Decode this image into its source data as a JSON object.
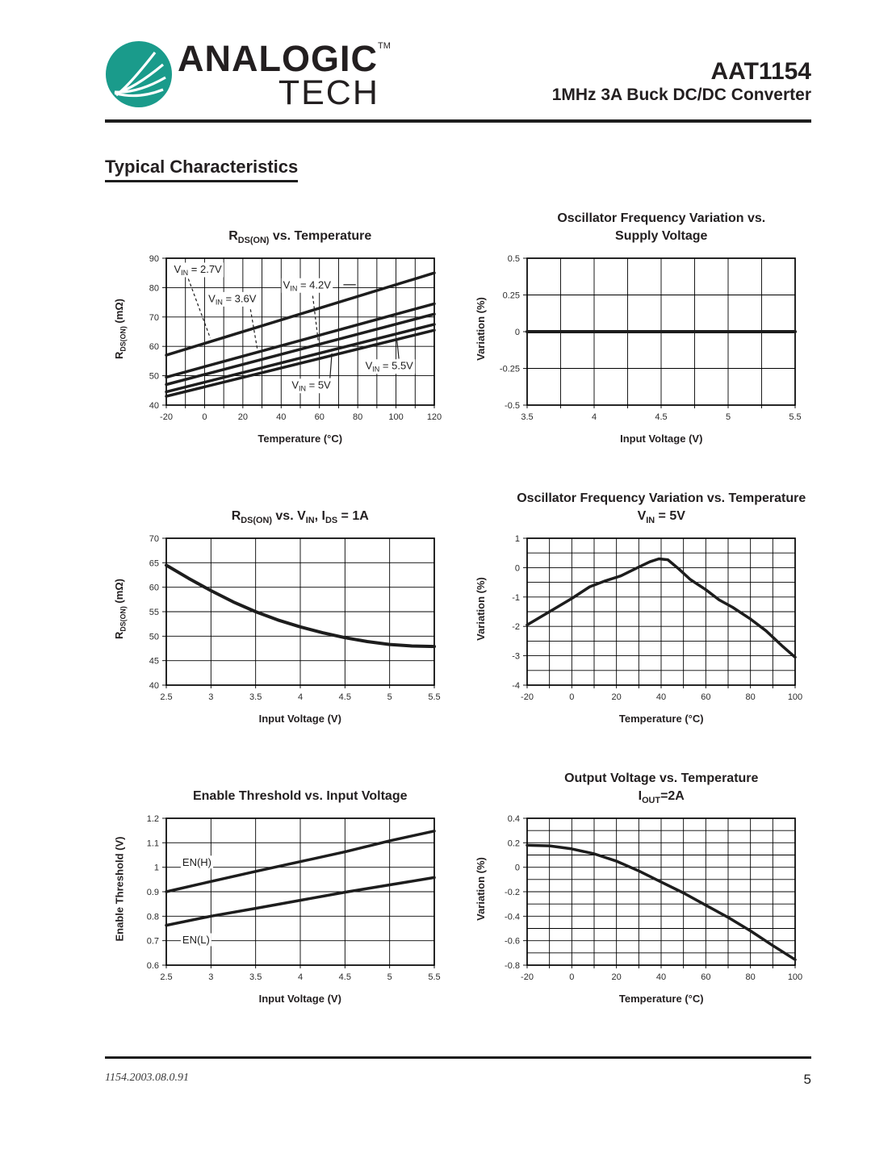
{
  "page": {
    "brand": {
      "line1": "ANALOGIC",
      "tm": "TM",
      "line2": "TECH"
    },
    "part_number": "AAT1154",
    "subtitle": "1MHz 3A Buck DC/DC Converter",
    "section_heading": "Typical Characteristics",
    "footer": {
      "doc_id": "1154.2003.08.0.91",
      "page_number": "5"
    },
    "colors": {
      "brand_teal": "#1A9B8B",
      "ink": "#231F20",
      "chart_stroke": "#1d1d1d"
    },
    "icons": [
      "analogictech-leaf-logo"
    ]
  },
  "chart_data": [
    {
      "id": "rdson-vs-temperature",
      "type": "line",
      "title": [
        [
          {
            "t": "R"
          },
          {
            "s": "DS(ON)"
          },
          {
            "t": " vs. Temperature"
          }
        ]
      ],
      "xlabel": [
        {
          "t": "Temperature (°C)"
        }
      ],
      "ylabel": [
        {
          "t": "R"
        },
        {
          "s": "DS(ON)"
        },
        {
          "t": " (mΩ)"
        }
      ],
      "x": {
        "min": -20,
        "max": 120,
        "grid": 10,
        "ticks": [
          -20,
          0,
          20,
          40,
          60,
          80,
          100,
          120
        ]
      },
      "y": {
        "min": 40,
        "max": 90,
        "grid": 10,
        "ticks": [
          40,
          50,
          60,
          70,
          80,
          90
        ]
      },
      "grid_on": true,
      "series": [
        {
          "name": "VIN = 2.7V",
          "w": 3.5,
          "points": [
            [
              -20,
              57
            ],
            [
              120,
              85
            ]
          ]
        },
        {
          "name": "VIN = 3.6V",
          "w": 3.5,
          "points": [
            [
              -20,
              49.5
            ],
            [
              120,
              74.5
            ]
          ]
        },
        {
          "name": "VIN = 4.2V",
          "w": 3.5,
          "points": [
            [
              -20,
              47
            ],
            [
              120,
              71
            ]
          ]
        },
        {
          "name": "VIN = 5V",
          "w": 3.5,
          "points": [
            [
              -20,
              44.5
            ],
            [
              120,
              67.5
            ]
          ]
        },
        {
          "name": "VIN = 5.5V",
          "w": 3.5,
          "points": [
            [
              -20,
              43
            ],
            [
              120,
              65.5
            ]
          ]
        }
      ],
      "annotations": [
        {
          "x": -16,
          "y": 86.3,
          "parts": [
            {
              "t": "V"
            },
            {
              "s": "IN"
            },
            {
              "t": " = 2.7V"
            }
          ],
          "leaders": [
            {
              "dash": true,
              "pts": [
                [
                  -8.5,
                  83.0
                ],
                [
                  3,
                  62.8
                ]
              ]
            }
          ]
        },
        {
          "x": 2,
          "y": 76.3,
          "parts": [
            {
              "t": "V"
            },
            {
              "s": "IN"
            },
            {
              "t": " = 3.6V"
            }
          ],
          "leaders": [
            {
              "dash": true,
              "pts": [
                [
                  24,
                  72.6
                ],
                [
                  27.5,
                  59.3
                ]
              ]
            }
          ]
        },
        {
          "x": 41,
          "y": 81.0,
          "parts": [
            {
              "t": "V"
            },
            {
              "s": "IN"
            },
            {
              "t": " = 4.2V"
            }
          ],
          "leaders": [
            {
              "dash": true,
              "pts": [
                [
                  56.5,
                  77.2
                ],
                [
                  59.5,
                  61.3
                ]
              ]
            },
            {
              "dash": false,
              "pts": [
                [
                  72.5,
                  81
                ],
                [
                  79,
                  81
                ]
              ]
            }
          ]
        },
        {
          "x": 45.5,
          "y": 46.8,
          "parts": [
            {
              "t": "V"
            },
            {
              "s": "IN"
            },
            {
              "t": " = 5V"
            }
          ],
          "leaders": [
            {
              "dash": false,
              "pts": [
                [
                  65.5,
                  49.2
                ],
                [
                  66.5,
                  57.6
                ]
              ]
            }
          ]
        },
        {
          "x": 84,
          "y": 53.4,
          "parts": [
            {
              "t": "V"
            },
            {
              "s": "IN"
            },
            {
              "t": " = 5.5V"
            }
          ],
          "leaders": [
            {
              "dash": false,
              "pts": [
                [
                  101.5,
                  55.8
                ],
                [
                  100.5,
                  61.9
                ]
              ]
            }
          ]
        }
      ]
    },
    {
      "id": "osc-freq-vs-supply-voltage",
      "type": "line",
      "title": [
        [
          {
            "t": "Oscillator Frequency Variation vs."
          }
        ],
        [
          {
            "t": "Supply Voltage"
          }
        ]
      ],
      "xlabel": [
        {
          "t": "Input Voltage (V)"
        }
      ],
      "ylabel": [
        {
          "t": "Variation (%)"
        }
      ],
      "x": {
        "min": 3.5,
        "max": 5.5,
        "grid": 0.25,
        "ticks": [
          3.5,
          4,
          4.5,
          5,
          5.5
        ]
      },
      "y": {
        "min": -0.5,
        "max": 0.5,
        "grid": 0.25,
        "ticks": [
          -0.5,
          -0.25,
          0,
          0.25,
          0.5
        ]
      },
      "grid_on": true,
      "series": [
        {
          "name": "",
          "w": 4,
          "points": [
            [
              3.5,
              0
            ],
            [
              5.5,
              0
            ]
          ]
        }
      ],
      "annotations": []
    },
    {
      "id": "rdson-vs-vin",
      "type": "line",
      "title": [
        [
          {
            "t": "R"
          },
          {
            "s": "DS(ON)"
          },
          {
            "t": " vs. V"
          },
          {
            "s": "IN"
          },
          {
            "t": ", I"
          },
          {
            "s": "DS"
          },
          {
            "t": " = 1A"
          }
        ]
      ],
      "xlabel": [
        {
          "t": "Input Voltage (V)"
        }
      ],
      "ylabel": [
        {
          "t": "R"
        },
        {
          "s": "DS(ON)"
        },
        {
          "t": " (mΩ)"
        }
      ],
      "x": {
        "min": 2.5,
        "max": 5.5,
        "grid": 0.5,
        "ticks": [
          2.5,
          3,
          3.5,
          4,
          4.5,
          5,
          5.5
        ]
      },
      "y": {
        "min": 40,
        "max": 70,
        "grid": 5,
        "ticks": [
          40,
          45,
          50,
          55,
          60,
          65,
          70
        ]
      },
      "grid_on": true,
      "series": [
        {
          "name": "",
          "w": 4,
          "points": [
            [
              2.5,
              64.5
            ],
            [
              2.75,
              61.8
            ],
            [
              3,
              59.3
            ],
            [
              3.25,
              57
            ],
            [
              3.5,
              55
            ],
            [
              3.75,
              53.3
            ],
            [
              4,
              51.9
            ],
            [
              4.25,
              50.7
            ],
            [
              4.5,
              49.7
            ],
            [
              4.75,
              48.9
            ],
            [
              5,
              48.3
            ],
            [
              5.25,
              48
            ],
            [
              5.5,
              47.9
            ]
          ]
        }
      ],
      "annotations": []
    },
    {
      "id": "osc-freq-vs-temperature",
      "type": "line",
      "title": [
        [
          {
            "t": "Oscillator Frequency Variation vs. Temperature"
          }
        ],
        [
          {
            "t": "V"
          },
          {
            "s": "IN"
          },
          {
            "t": " = 5V"
          }
        ]
      ],
      "xlabel": [
        {
          "t": "Temperature (°C)"
        }
      ],
      "ylabel": [
        {
          "t": "Variation (%)"
        }
      ],
      "x": {
        "min": -20,
        "max": 100,
        "grid": 10,
        "ticks": [
          -20,
          0,
          20,
          40,
          60,
          80,
          100
        ]
      },
      "y": {
        "min": -4,
        "max": 1,
        "grid": 0.5,
        "ticks": [
          -4,
          -3,
          -2,
          -1,
          0,
          1
        ]
      },
      "grid_on": true,
      "series": [
        {
          "name": "",
          "w": 3.5,
          "points": [
            [
              -20,
              -1.95
            ],
            [
              -10,
              -1.5
            ],
            [
              0,
              -1.05
            ],
            [
              8,
              -0.65
            ],
            [
              15,
              -0.45
            ],
            [
              22,
              -0.28
            ],
            [
              30,
              0.02
            ],
            [
              35,
              0.2
            ],
            [
              39,
              0.3
            ],
            [
              43,
              0.27
            ],
            [
              48,
              -0.05
            ],
            [
              53,
              -0.4
            ],
            [
              60,
              -0.75
            ],
            [
              66,
              -1.1
            ],
            [
              72,
              -1.35
            ],
            [
              80,
              -1.75
            ],
            [
              87,
              -2.15
            ],
            [
              94,
              -2.65
            ],
            [
              100,
              -3.05
            ]
          ]
        }
      ],
      "annotations": []
    },
    {
      "id": "enable-threshold-vs-input-voltage",
      "type": "line",
      "title": [
        [
          {
            "t": "Enable Threshold vs. Input Voltage"
          }
        ]
      ],
      "xlabel": [
        {
          "t": "Input Voltage (V)"
        }
      ],
      "ylabel": [
        {
          "t": "Enable Threshold (V)"
        }
      ],
      "x": {
        "min": 2.5,
        "max": 5.5,
        "grid": 0.5,
        "ticks": [
          2.5,
          3,
          3.5,
          4,
          4.5,
          5,
          5.5
        ]
      },
      "y": {
        "min": 0.6,
        "max": 1.2,
        "grid": 0.1,
        "ticks": [
          0.6,
          0.7,
          0.8,
          0.9,
          1,
          1.1,
          1.2
        ]
      },
      "grid_on": true,
      "series": [
        {
          "name": "EN(H)",
          "w": 3.5,
          "points": [
            [
              2.5,
              0.9
            ],
            [
              3,
              0.942
            ],
            [
              3.5,
              0.983
            ],
            [
              4,
              1.023
            ],
            [
              4.5,
              1.063
            ],
            [
              5,
              1.108
            ],
            [
              5.5,
              1.148
            ]
          ]
        },
        {
          "name": "EN(L)",
          "w": 3.5,
          "points": [
            [
              2.5,
              0.763
            ],
            [
              3,
              0.8
            ],
            [
              3.5,
              0.832
            ],
            [
              4,
              0.865
            ],
            [
              4.5,
              0.898
            ],
            [
              5,
              0.928
            ],
            [
              5.5,
              0.958
            ]
          ]
        }
      ],
      "annotations": [
        {
          "x": 2.68,
          "y": 1.021,
          "parts": [
            {
              "t": "EN(H)"
            }
          ],
          "leaders": []
        },
        {
          "x": 2.68,
          "y": 0.704,
          "parts": [
            {
              "t": "EN(L)"
            }
          ],
          "leaders": []
        }
      ]
    },
    {
      "id": "output-voltage-vs-temperature",
      "type": "line",
      "title": [
        [
          {
            "t": "Output Voltage vs. Temperature"
          }
        ],
        [
          {
            "t": "I"
          },
          {
            "s": "OUT"
          },
          {
            "t": "=2A"
          }
        ]
      ],
      "xlabel": [
        {
          "t": "Temperature (°C)"
        }
      ],
      "ylabel": [
        {
          "t": "Variation (%)"
        }
      ],
      "x": {
        "min": -20,
        "max": 100,
        "grid": 10,
        "ticks": [
          -20,
          0,
          20,
          40,
          60,
          80,
          100
        ]
      },
      "y": {
        "min": -0.8,
        "max": 0.4,
        "grid": 0.1,
        "ticks": [
          -0.8,
          -0.6,
          -0.4,
          -0.2,
          0,
          0.2,
          0.4
        ]
      },
      "grid_on": true,
      "series": [
        {
          "name": "",
          "w": 3.5,
          "points": [
            [
              -20,
              0.18
            ],
            [
              -10,
              0.175
            ],
            [
              0,
              0.15
            ],
            [
              10,
              0.11
            ],
            [
              20,
              0.05
            ],
            [
              30,
              -0.03
            ],
            [
              40,
              -0.12
            ],
            [
              50,
              -0.21
            ],
            [
              60,
              -0.31
            ],
            [
              70,
              -0.41
            ],
            [
              80,
              -0.52
            ],
            [
              90,
              -0.64
            ],
            [
              100,
              -0.755
            ]
          ]
        }
      ],
      "annotations": []
    }
  ]
}
